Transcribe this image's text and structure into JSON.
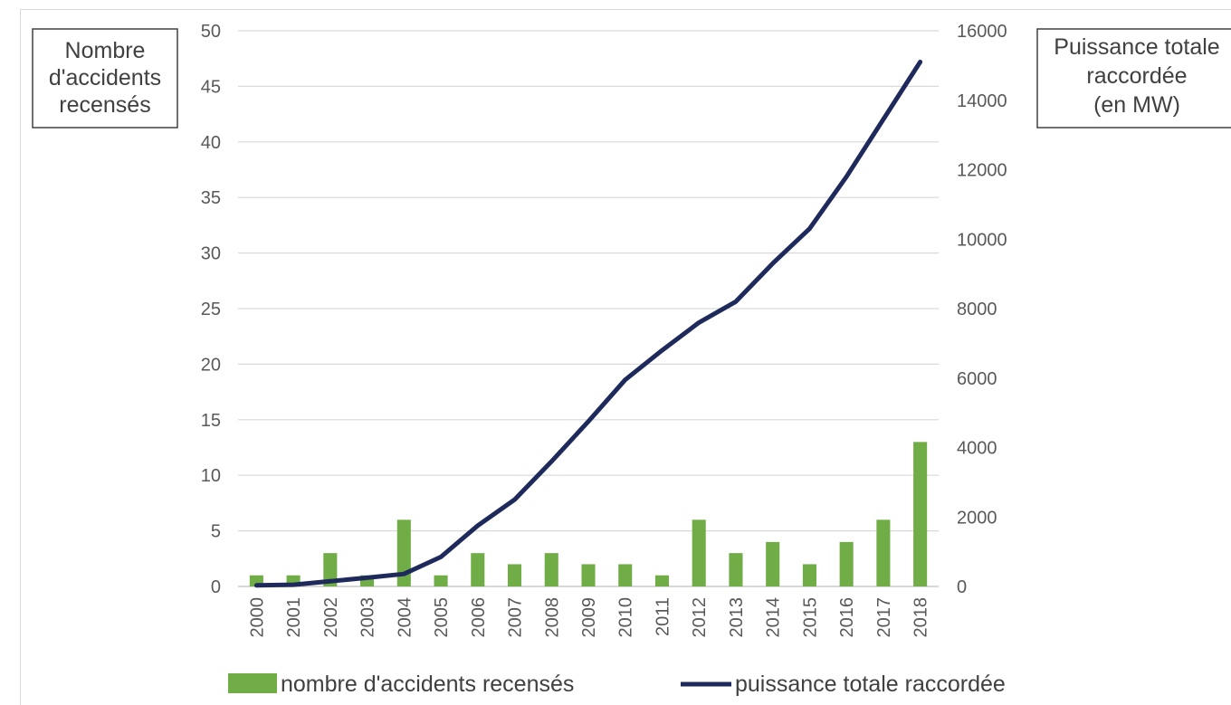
{
  "chart_data": {
    "type": "bar+line",
    "title": "",
    "categories": [
      "2000",
      "2001",
      "2002",
      "2003",
      "2004",
      "2005",
      "2006",
      "2007",
      "2008",
      "2009",
      "2010",
      "2011",
      "2012",
      "2013",
      "2014",
      "2015",
      "2016",
      "2017",
      "2018"
    ],
    "y_left": {
      "label_lines": [
        "Nombre",
        "d'accidents",
        "recensés"
      ],
      "ylim": [
        0,
        50
      ],
      "ticks": [
        "0",
        "5",
        "10",
        "15",
        "20",
        "25",
        "30",
        "35",
        "40",
        "45",
        "50"
      ]
    },
    "y_right": {
      "label_lines": [
        "Puissance totale",
        "raccordée",
        "(en MW)"
      ],
      "ylim": [
        0,
        16000
      ],
      "ticks": [
        "0",
        "2000",
        "4000",
        "6000",
        "8000",
        "10000",
        "12000",
        "14000",
        "16000"
      ]
    },
    "series": [
      {
        "name": "nombre d'accidents recensés",
        "kind": "bar",
        "axis": "left",
        "color": "#70ad47",
        "values": [
          1,
          1,
          3,
          1,
          6,
          1,
          3,
          2,
          3,
          2,
          2,
          1,
          6,
          3,
          4,
          2,
          4,
          6,
          13
        ]
      },
      {
        "name": "puissance totale raccordée",
        "kind": "line",
        "axis": "right",
        "color": "#1f2a5c",
        "values": [
          30,
          50,
          150,
          250,
          360,
          850,
          1750,
          2500,
          3600,
          4750,
          5950,
          6800,
          7600,
          8200,
          9300,
          10300,
          11800,
          13450,
          15100
        ]
      }
    ],
    "grid": true,
    "legend_position": "bottom"
  }
}
